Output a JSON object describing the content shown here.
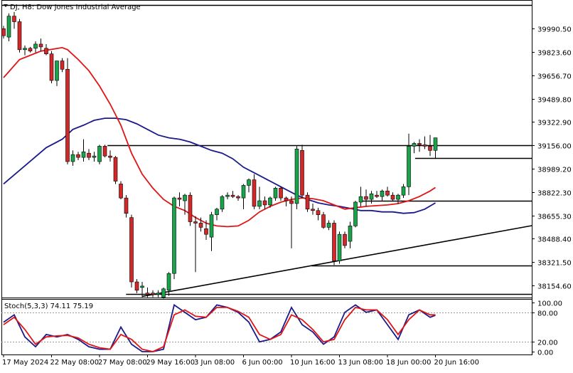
{
  "chart_data": {
    "type": "candlestick",
    "title": "DJ, H8:  Dow Jones Industrial Average",
    "price_axis": {
      "ticks": [
        "39990.50",
        "39823.60",
        "39656.70",
        "39489.80",
        "39322.90",
        "39156.00",
        "38989.20",
        "38822.30",
        "38655.30",
        "38488.40",
        "38321.50",
        "38154.60"
      ],
      "range": [
        38068,
        40180
      ]
    },
    "time_axis": {
      "labels": [
        "17 May 2024",
        "22 May 08:00",
        "27 May 08:00",
        "29 May 16:00",
        "3 Jun 08:00",
        "6 Jun 00:00",
        "10 Jun 16:00",
        "13 Jun 08:00",
        "18 Jun 00:00",
        "20 Jun 16:00"
      ]
    },
    "candles": [
      [
        39990,
        40010,
        39920,
        39940
      ],
      [
        39930,
        40100,
        39900,
        40080
      ],
      [
        40080,
        40110,
        39990,
        40040
      ],
      [
        40040,
        40060,
        39820,
        39840
      ],
      [
        39840,
        39870,
        39800,
        39850
      ],
      [
        39850,
        39860,
        39820,
        39830
      ],
      [
        39850,
        39900,
        39820,
        39880
      ],
      [
        39880,
        39920,
        39830,
        39860
      ],
      [
        39850,
        39880,
        39800,
        39810
      ],
      [
        39810,
        39830,
        39600,
        39620
      ],
      [
        39620,
        39760,
        39580,
        39760
      ],
      [
        39760,
        39780,
        39680,
        39700
      ],
      [
        39700,
        39780,
        39020,
        39040
      ],
      [
        39040,
        39120,
        39010,
        39090
      ],
      [
        39090,
        39110,
        39050,
        39070
      ],
      [
        39070,
        39200,
        39040,
        39110
      ],
      [
        39100,
        39130,
        39050,
        39070
      ],
      [
        39070,
        39110,
        39040,
        39080
      ],
      [
        39040,
        39160,
        39020,
        39150
      ],
      [
        39150,
        39160,
        39070,
        39080
      ],
      [
        39080,
        39120,
        39040,
        39070
      ],
      [
        39070,
        39080,
        38880,
        38900
      ],
      [
        38880,
        38900,
        38770,
        38780
      ],
      [
        38780,
        38800,
        38640,
        38670
      ],
      [
        38640,
        38660,
        38140,
        38180
      ],
      [
        38180,
        38200,
        38100,
        38120
      ],
      [
        38140,
        38180,
        38070,
        38150
      ],
      [
        38100,
        38140,
        38070,
        38090
      ],
      [
        38100,
        38120,
        38070,
        38090
      ],
      [
        38090,
        38120,
        38070,
        38100
      ],
      [
        38070,
        38140,
        38060,
        38130
      ],
      [
        38120,
        38250,
        38080,
        38240
      ],
      [
        38240,
        38790,
        38200,
        38780
      ],
      [
        38780,
        38820,
        38720,
        38770
      ],
      [
        38760,
        38810,
        38660,
        38800
      ],
      [
        38800,
        38820,
        38580,
        38610
      ],
      [
        38610,
        38650,
        38250,
        38600
      ],
      [
        38600,
        38640,
        38540,
        38570
      ],
      [
        38560,
        38620,
        38480,
        38520
      ],
      [
        38500,
        38680,
        38400,
        38660
      ],
      [
        38660,
        38710,
        38620,
        38700
      ],
      [
        38700,
        38800,
        38680,
        38790
      ],
      [
        38790,
        38820,
        38770,
        38800
      ],
      [
        38800,
        38830,
        38780,
        38790
      ],
      [
        38790,
        38800,
        38760,
        38780
      ],
      [
        38780,
        38880,
        38700,
        38870
      ],
      [
        38870,
        38920,
        38820,
        38910
      ],
      [
        38910,
        38950,
        38700,
        38720
      ],
      [
        38720,
        38860,
        38700,
        38760
      ],
      [
        38760,
        38790,
        38700,
        38730
      ],
      [
        38730,
        38790,
        38710,
        38780
      ],
      [
        38780,
        38860,
        38760,
        38850
      ],
      [
        38850,
        38860,
        38760,
        38780
      ],
      [
        38780,
        38790,
        38720,
        38760
      ],
      [
        38760,
        38790,
        38420,
        38740
      ],
      [
        38740,
        39150,
        38700,
        39130
      ],
      [
        39120,
        39160,
        38780,
        38800
      ],
      [
        38800,
        38820,
        38680,
        38700
      ],
      [
        38700,
        38740,
        38660,
        38690
      ],
      [
        38690,
        38710,
        38620,
        38660
      ],
      [
        38660,
        38680,
        38560,
        38570
      ],
      [
        38570,
        38620,
        38550,
        38600
      ],
      [
        38600,
        38620,
        38300,
        38330
      ],
      [
        38330,
        38540,
        38310,
        38520
      ],
      [
        38520,
        38540,
        38420,
        38440
      ],
      [
        38470,
        38610,
        38420,
        38580
      ],
      [
        38580,
        38760,
        38570,
        38750
      ],
      [
        38750,
        38860,
        38720,
        38790
      ],
      [
        38790,
        38840,
        38720,
        38770
      ],
      [
        38770,
        38830,
        38740,
        38810
      ],
      [
        38800,
        38830,
        38780,
        38790
      ],
      [
        38790,
        38840,
        38760,
        38830
      ],
      [
        38830,
        38860,
        38790,
        38800
      ],
      [
        38800,
        38820,
        38760,
        38770
      ],
      [
        38770,
        38810,
        38740,
        38800
      ],
      [
        38800,
        38880,
        38780,
        38860
      ],
      [
        38860,
        39240,
        38800,
        39150
      ],
      [
        39150,
        39180,
        39100,
        39170
      ],
      [
        39170,
        39200,
        39110,
        39160
      ],
      [
        39160,
        39220,
        39130,
        39150
      ],
      [
        39150,
        39230,
        39080,
        39120
      ],
      [
        39120,
        39210,
        39060,
        39210
      ]
    ],
    "ma_fast": [
      [
        0,
        39640
      ],
      [
        3,
        39770
      ],
      [
        7,
        39830
      ],
      [
        11,
        39855
      ],
      [
        12,
        39840
      ],
      [
        14,
        39770
      ],
      [
        16,
        39690
      ],
      [
        18,
        39580
      ],
      [
        20,
        39450
      ],
      [
        22,
        39300
      ],
      [
        24,
        39100
      ],
      [
        26,
        38950
      ],
      [
        28,
        38850
      ],
      [
        30,
        38770
      ],
      [
        32,
        38720
      ],
      [
        34,
        38690
      ],
      [
        36,
        38640
      ],
      [
        38,
        38600
      ],
      [
        40,
        38580
      ],
      [
        42,
        38575
      ],
      [
        44,
        38580
      ],
      [
        46,
        38620
      ],
      [
        48,
        38680
      ],
      [
        50,
        38720
      ],
      [
        52,
        38750
      ],
      [
        54,
        38770
      ],
      [
        56,
        38780
      ],
      [
        58,
        38775
      ],
      [
        60,
        38760
      ],
      [
        62,
        38730
      ],
      [
        64,
        38700
      ],
      [
        66,
        38710
      ],
      [
        68,
        38720
      ],
      [
        70,
        38725
      ],
      [
        72,
        38730
      ],
      [
        74,
        38740
      ],
      [
        76,
        38760
      ],
      [
        78,
        38790
      ],
      [
        80,
        38830
      ],
      [
        81,
        38855
      ]
    ],
    "ma_slow": [
      [
        0,
        38880
      ],
      [
        4,
        39010
      ],
      [
        8,
        39140
      ],
      [
        11,
        39200
      ],
      [
        13,
        39270
      ],
      [
        15,
        39300
      ],
      [
        17,
        39335
      ],
      [
        19,
        39350
      ],
      [
        21,
        39350
      ],
      [
        23,
        39340
      ],
      [
        25,
        39310
      ],
      [
        27,
        39270
      ],
      [
        29,
        39230
      ],
      [
        31,
        39210
      ],
      [
        33,
        39200
      ],
      [
        35,
        39180
      ],
      [
        37,
        39150
      ],
      [
        39,
        39120
      ],
      [
        41,
        39100
      ],
      [
        43,
        39060
      ],
      [
        45,
        39000
      ],
      [
        47,
        38960
      ],
      [
        49,
        38920
      ],
      [
        51,
        38880
      ],
      [
        53,
        38840
      ],
      [
        55,
        38800
      ],
      [
        57,
        38770
      ],
      [
        59,
        38745
      ],
      [
        61,
        38730
      ],
      [
        63,
        38720
      ],
      [
        65,
        38705
      ],
      [
        67,
        38690
      ],
      [
        69,
        38690
      ],
      [
        71,
        38680
      ],
      [
        73,
        38680
      ],
      [
        75,
        38670
      ],
      [
        77,
        38675
      ],
      [
        79,
        38700
      ],
      [
        81,
        38745
      ]
    ],
    "horizontal_levels": [
      {
        "price": 40160,
        "from": 0,
        "to": 1
      },
      {
        "price": 39156,
        "from": 0.2,
        "to": 1
      },
      {
        "price": 39065,
        "from": 0.78,
        "to": 1
      },
      {
        "price": 38760,
        "from": 0.68,
        "to": 1
      },
      {
        "price": 38295,
        "from": 0.585,
        "to": 1
      },
      {
        "price": 38092,
        "from": 0.235,
        "to": 1
      }
    ],
    "trendline": {
      "from": [
        26,
        38076
      ],
      "to_edge_price": 38582
    },
    "stochastic": {
      "label": "Stoch(5,3,3) 74.11 75.19",
      "levels": [
        "100.00",
        "80.00",
        "20.00",
        "0.00"
      ],
      "main": [
        [
          0,
          60
        ],
        [
          2,
          75
        ],
        [
          4,
          30
        ],
        [
          6,
          10
        ],
        [
          8,
          35
        ],
        [
          10,
          30
        ],
        [
          12,
          35
        ],
        [
          14,
          25
        ],
        [
          16,
          10
        ],
        [
          18,
          5
        ],
        [
          20,
          5
        ],
        [
          22,
          50
        ],
        [
          24,
          15
        ],
        [
          26,
          0
        ],
        [
          28,
          0
        ],
        [
          30,
          5
        ],
        [
          32,
          95
        ],
        [
          34,
          80
        ],
        [
          36,
          65
        ],
        [
          38,
          70
        ],
        [
          40,
          95
        ],
        [
          42,
          90
        ],
        [
          44,
          80
        ],
        [
          46,
          60
        ],
        [
          48,
          20
        ],
        [
          50,
          25
        ],
        [
          52,
          40
        ],
        [
          54,
          90
        ],
        [
          56,
          55
        ],
        [
          58,
          40
        ],
        [
          60,
          15
        ],
        [
          62,
          30
        ],
        [
          64,
          80
        ],
        [
          66,
          95
        ],
        [
          68,
          80
        ],
        [
          70,
          85
        ],
        [
          72,
          55
        ],
        [
          74,
          25
        ],
        [
          76,
          75
        ],
        [
          78,
          85
        ],
        [
          80,
          70
        ],
        [
          81,
          74
        ]
      ],
      "signal": [
        [
          0,
          55
        ],
        [
          2,
          70
        ],
        [
          4,
          45
        ],
        [
          6,
          15
        ],
        [
          8,
          30
        ],
        [
          10,
          32
        ],
        [
          12,
          33
        ],
        [
          14,
          28
        ],
        [
          16,
          15
        ],
        [
          18,
          8
        ],
        [
          20,
          5
        ],
        [
          22,
          35
        ],
        [
          24,
          25
        ],
        [
          26,
          5
        ],
        [
          28,
          0
        ],
        [
          30,
          10
        ],
        [
          32,
          75
        ],
        [
          34,
          85
        ],
        [
          36,
          72
        ],
        [
          38,
          70
        ],
        [
          40,
          90
        ],
        [
          42,
          90
        ],
        [
          44,
          82
        ],
        [
          46,
          70
        ],
        [
          48,
          35
        ],
        [
          50,
          25
        ],
        [
          52,
          35
        ],
        [
          54,
          75
        ],
        [
          56,
          65
        ],
        [
          58,
          45
        ],
        [
          60,
          20
        ],
        [
          62,
          25
        ],
        [
          64,
          65
        ],
        [
          66,
          90
        ],
        [
          68,
          85
        ],
        [
          70,
          85
        ],
        [
          72,
          65
        ],
        [
          74,
          35
        ],
        [
          76,
          65
        ],
        [
          78,
          85
        ],
        [
          80,
          75
        ],
        [
          81,
          75
        ]
      ]
    },
    "colors": {
      "bull": "#19a34a",
      "bear": "#d42828",
      "ma_fast": "#e01515",
      "ma_slow": "#1a1a8c",
      "stoch_main": "#1a1a8c",
      "stoch_signal": "#e01515"
    }
  }
}
